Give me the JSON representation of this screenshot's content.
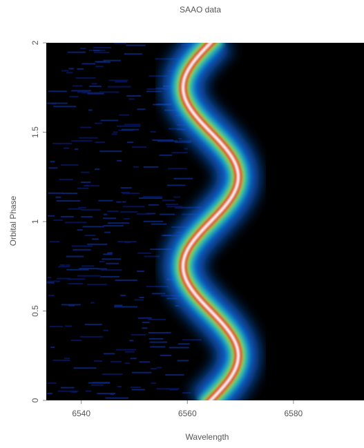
{
  "chart_data": {
    "type": "spectrogram",
    "title": "SAAO data",
    "x_label": "Wavelength",
    "y_label": "Orbital Phase",
    "xlim": [
      6533.4,
      6593.3
    ],
    "xticks": [
      6540,
      6560,
      6580
    ],
    "ylim": [
      0,
      2
    ],
    "yticks": [
      0,
      0.5,
      1,
      1.5,
      2
    ]
  }
}
